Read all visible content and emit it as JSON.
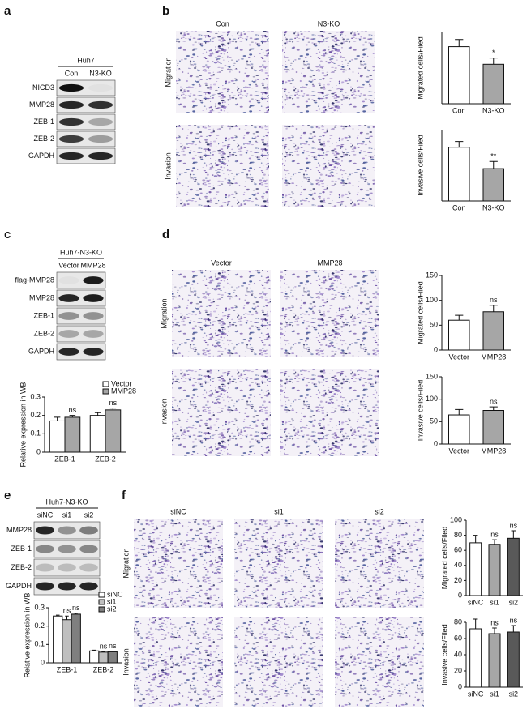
{
  "panel_labels": [
    "a",
    "b",
    "c",
    "d",
    "e",
    "f"
  ],
  "blots": [
    {
      "group": "Huh7",
      "lanes": [
        "Con",
        "N3-KO"
      ],
      "rows": [
        "NICD3",
        "MMP28",
        "ZEB-1",
        "ZEB-2",
        "GAPDH"
      ]
    },
    {
      "group": "Huh7-N3-KO",
      "lanes": [
        "Vector",
        "MMP28"
      ],
      "rows": [
        "flag-MMP28",
        "MMP28",
        "ZEB-1",
        "ZEB-2",
        "GAPDH"
      ]
    },
    {
      "group": "Huh7-N3-KO",
      "lanes": [
        "siNC",
        "si1",
        "si2"
      ],
      "rows": [
        "MMP28",
        "ZEB-1",
        "ZEB-2",
        "GAPDH"
      ]
    }
  ],
  "micrographs": [
    {
      "columns": [
        "Con",
        "N3-KO"
      ],
      "rows": [
        "Migration",
        "Invasion"
      ]
    },
    {
      "columns": [
        "Vector",
        "MMP28"
      ],
      "rows": [
        "Migration",
        "Invasion"
      ]
    },
    {
      "columns": [
        "siNC",
        "si1",
        "si2"
      ],
      "rows": [
        "Migration",
        "Invasion"
      ]
    }
  ],
  "chart_data": [
    {
      "type": "bar",
      "ylabel": "Migrated cells/Filed",
      "categories": [
        "Con",
        "N3-KO"
      ],
      "values": [
        120,
        83
      ],
      "errors": [
        15,
        13
      ],
      "colors": [
        "#ffffff",
        "#a6a6a6"
      ],
      "annotations": [
        null,
        "*"
      ],
      "ylim": [
        0,
        150
      ]
    },
    {
      "type": "bar",
      "ylabel": "Invasive cells/Filed",
      "categories": [
        "Con",
        "N3-KO"
      ],
      "values": [
        113,
        68
      ],
      "errors": [
        12,
        15
      ],
      "colors": [
        "#ffffff",
        "#a6a6a6"
      ],
      "annotations": [
        null,
        "**"
      ],
      "ylim": [
        0,
        150
      ]
    },
    {
      "type": "bar",
      "ylabel": "Relative expression in WB",
      "categories": [
        "ZEB-1",
        "ZEB-2"
      ],
      "ylim": [
        0,
        0.3
      ],
      "yticks": [
        0,
        0.1,
        0.2,
        0.3
      ],
      "series": [
        {
          "name": "Vector",
          "color": "#ffffff",
          "values": [
            0.17,
            0.2
          ],
          "errors": [
            0.02,
            0.015
          ],
          "annotations": [
            null,
            null
          ]
        },
        {
          "name": "MMP28",
          "color": "#a6a6a6",
          "values": [
            0.19,
            0.23
          ],
          "errors": [
            0.01,
            0.01
          ],
          "annotations": [
            "ns",
            "ns"
          ]
        }
      ]
    },
    {
      "type": "bar",
      "ylabel": "Migrated cells/Filed",
      "categories": [
        "Vector",
        "MMP28"
      ],
      "values": [
        60,
        77
      ],
      "errors": [
        10,
        13
      ],
      "colors": [
        "#ffffff",
        "#a6a6a6"
      ],
      "annotations": [
        null,
        "ns"
      ],
      "ylim": [
        0,
        150
      ],
      "yticks": [
        0,
        50,
        100,
        150
      ]
    },
    {
      "type": "bar",
      "ylabel": "Invasive cells/Filed",
      "categories": [
        "Vector",
        "MMP28"
      ],
      "values": [
        65,
        75
      ],
      "errors": [
        12,
        8
      ],
      "colors": [
        "#ffffff",
        "#a6a6a6"
      ],
      "annotations": [
        null,
        "ns"
      ],
      "ylim": [
        0,
        150
      ],
      "yticks": [
        0,
        50,
        100,
        150
      ]
    },
    {
      "type": "bar",
      "ylabel": "Relative expression in WB",
      "categories": [
        "ZEB-1",
        "ZEB-2"
      ],
      "ylim": [
        0,
        0.3
      ],
      "yticks": [
        0,
        0.1,
        0.2,
        0.3
      ],
      "series": [
        {
          "name": "siNC",
          "color": "#ffffff",
          "values": [
            0.255,
            0.065
          ],
          "errors": [
            0.005,
            0.004
          ],
          "annotations": [
            null,
            null
          ]
        },
        {
          "name": "si1",
          "color": "#bfbfbf",
          "values": [
            0.235,
            0.058
          ],
          "errors": [
            0.02,
            0.004
          ],
          "annotations": [
            "ns",
            "ns"
          ]
        },
        {
          "name": "si2",
          "color": "#7f7f7f",
          "values": [
            0.265,
            0.06
          ],
          "errors": [
            0.005,
            0.004
          ],
          "annotations": [
            "ns",
            "ns"
          ]
        }
      ]
    },
    {
      "type": "bar",
      "ylabel": "Migrated cells/Filed",
      "categories": [
        "siNC",
        "si1",
        "si2"
      ],
      "values": [
        70,
        68,
        76
      ],
      "errors": [
        10,
        6,
        10
      ],
      "colors": [
        "#ffffff",
        "#a6a6a6",
        "#595959"
      ],
      "annotations": [
        null,
        "ns",
        "ns"
      ],
      "ylim": [
        0,
        100
      ],
      "yticks": [
        0,
        20,
        40,
        60,
        80,
        100
      ]
    },
    {
      "type": "bar",
      "ylabel": "Invasive cells/Filed",
      "categories": [
        "siNC",
        "si1",
        "si2"
      ],
      "values": [
        72,
        66,
        68
      ],
      "errors": [
        12,
        7,
        8
      ],
      "colors": [
        "#ffffff",
        "#a6a6a6",
        "#595959"
      ],
      "annotations": [
        null,
        "ns",
        "ns"
      ],
      "ylim": [
        0,
        80
      ],
      "yticks": [
        0,
        20,
        40,
        60,
        80
      ]
    }
  ]
}
